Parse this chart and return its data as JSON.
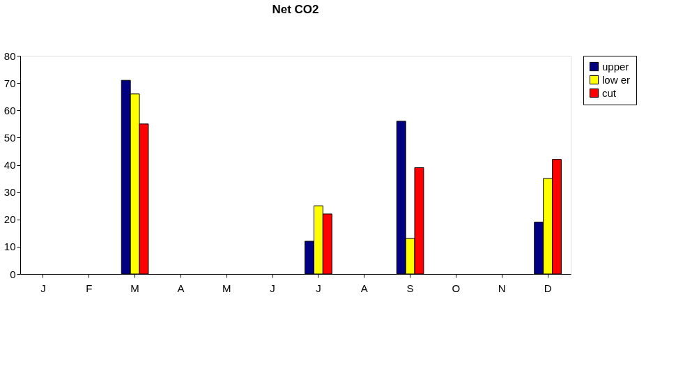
{
  "chart_data": {
    "type": "bar",
    "title": "Net CO2",
    "categories": [
      "J",
      "F",
      "M",
      "A",
      "M",
      "J",
      "J",
      "A",
      "S",
      "O",
      "N",
      "D"
    ],
    "series": [
      {
        "name": "upper",
        "color": "#000080",
        "values": [
          null,
          null,
          71,
          null,
          null,
          null,
          12,
          null,
          56,
          null,
          null,
          19
        ]
      },
      {
        "name": "low er",
        "color": "#ffff00",
        "values": [
          null,
          null,
          66,
          null,
          null,
          null,
          25,
          null,
          13,
          null,
          null,
          35
        ]
      },
      {
        "name": "cut",
        "color": "#ff0000",
        "values": [
          null,
          null,
          55,
          null,
          null,
          null,
          22,
          null,
          39,
          null,
          null,
          42
        ]
      }
    ],
    "ylim": [
      0,
      80
    ],
    "yticks": [
      0,
      10,
      20,
      30,
      40,
      50,
      60,
      70,
      80
    ],
    "grid": false,
    "legend": "right"
  }
}
